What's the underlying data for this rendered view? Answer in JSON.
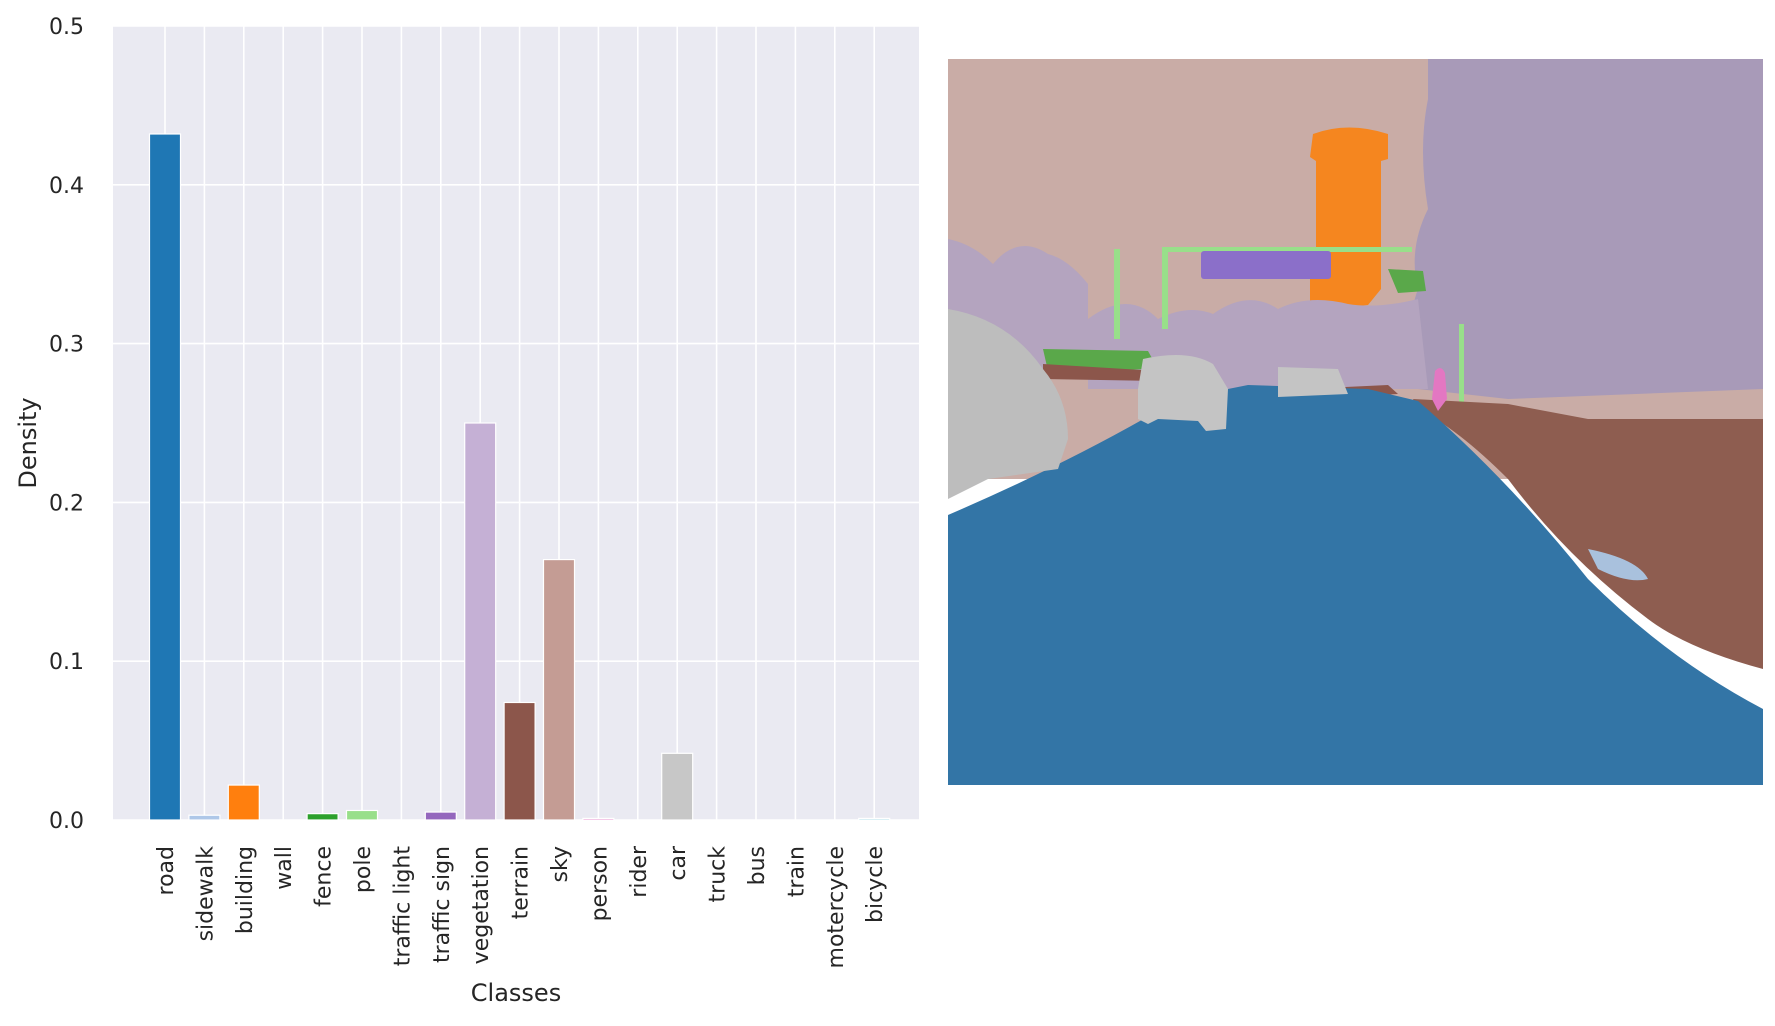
{
  "chart_data": {
    "type": "bar",
    "xlabel": "Classes",
    "ylabel": "Density",
    "ylim": [
      0,
      0.5
    ],
    "yticks": [
      "0.0",
      "0.1",
      "0.2",
      "0.3",
      "0.4",
      "0.5"
    ],
    "grid": true,
    "categories": [
      "road",
      "sidewalk",
      "building",
      "wall",
      "fence",
      "pole",
      "traffic light",
      "traffic sign",
      "vegetation",
      "terrain",
      "sky",
      "person",
      "rider",
      "car",
      "truck",
      "bus",
      "train",
      "motercycle",
      "bicycle"
    ],
    "values": [
      0.432,
      0.003,
      0.022,
      0.0,
      0.004,
      0.006,
      0.0,
      0.005,
      0.25,
      0.074,
      0.164,
      0.001,
      0.0,
      0.042,
      0.0,
      0.0,
      0.0,
      0.0,
      0.001
    ],
    "colors": [
      "#1f77b4",
      "#aec7e8",
      "#ff7f0e",
      "#ffbb78",
      "#2ca02c",
      "#98df8a",
      "#d62728",
      "#9467bd",
      "#c5b0d5",
      "#8c564b",
      "#c49c94",
      "#e377c2",
      "#f7b6d2",
      "#c7c7c7",
      "#7f7f7f",
      "#dbdb8d",
      "#bcbd22",
      "#17becf",
      "#9edae5"
    ],
    "plot_background": "#eaeaf2"
  },
  "image": {
    "semantic_classes_shown": [
      "sky",
      "vegetation",
      "building",
      "traffic sign",
      "pole",
      "fence",
      "car",
      "road",
      "sidewalk",
      "terrain",
      "person"
    ]
  }
}
